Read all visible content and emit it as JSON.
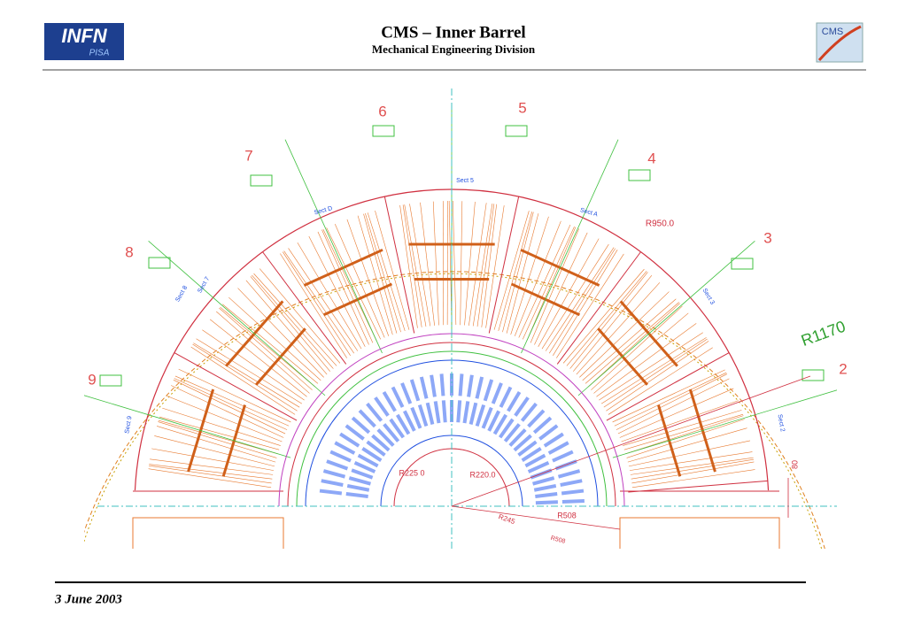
{
  "header": {
    "title": "CMS – Inner Barrel",
    "subtitle": "Mechanical Engineering Division",
    "logo_left": {
      "top": "INFN",
      "bottom": "PISA"
    },
    "logo_right": "CMS"
  },
  "drawing": {
    "labels": [
      "6",
      "5",
      "7",
      "4",
      "8",
      "3",
      "9",
      "2",
      "R1170",
      "R950.0",
      "Sect 5",
      "Sect D",
      "Sect A",
      "Sect 8",
      "Sect 7",
      "Sect 3",
      "Sect 9",
      "Sect 2",
      "R225 0",
      "R220.0",
      "R508",
      "R245",
      "R508",
      "80"
    ]
  },
  "footer": {
    "date": "3 June 2003"
  }
}
